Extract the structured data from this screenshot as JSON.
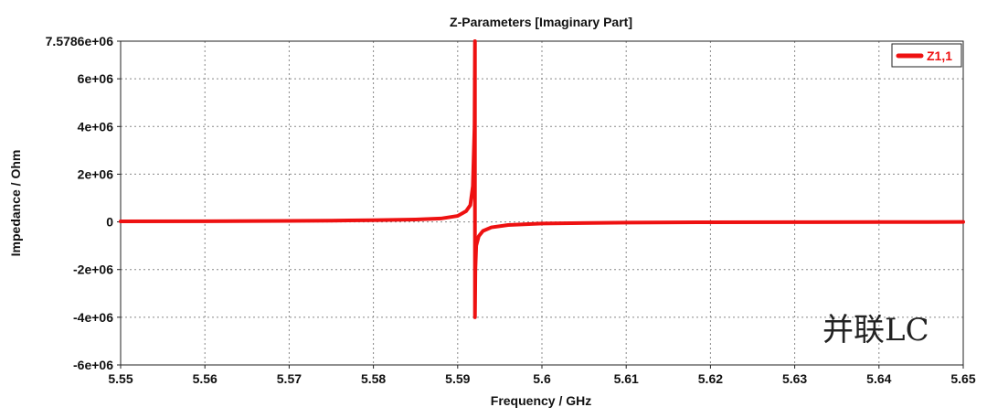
{
  "chart_data": {
    "type": "line",
    "title": "Z-Parameters [Imaginary Part]",
    "xlabel": "Frequency / GHz",
    "ylabel": "Impedance / Ohm",
    "xlim": [
      5.55,
      5.65
    ],
    "ylim": [
      -6000000,
      7578600
    ],
    "x_ticks": [
      5.55,
      5.56,
      5.57,
      5.58,
      5.59,
      5.6,
      5.61,
      5.62,
      5.63,
      5.64,
      5.65
    ],
    "x_tick_labels": [
      "5.55",
      "5.56",
      "5.57",
      "5.58",
      "5.59",
      "5.6",
      "5.61",
      "5.62",
      "5.63",
      "5.64",
      "5.65"
    ],
    "y_ticks": [
      -6000000,
      -4000000,
      -2000000,
      0,
      2000000,
      4000000,
      6000000,
      7578600
    ],
    "y_tick_labels": [
      "-6e+06",
      "-4e+06",
      "-2e+06",
      "0",
      "2e+06",
      "4e+06",
      "6e+06",
      "7.5786e+06"
    ],
    "grid": true,
    "legend_position": "top-right",
    "annotation": "并联LC",
    "series": [
      {
        "name": "Z1,1",
        "color": "#ee1111",
        "x": [
          5.55,
          5.56,
          5.57,
          5.575,
          5.58,
          5.585,
          5.588,
          5.59,
          5.591,
          5.5915,
          5.5918,
          5.592,
          5.59205,
          5.59205,
          5.5921,
          5.5922,
          5.5925,
          5.593,
          5.594,
          5.596,
          5.6,
          5.61,
          5.62,
          5.63,
          5.64,
          5.65
        ],
        "y": [
          20000,
          25000,
          40000,
          50000,
          70000,
          100000,
          140000,
          250000,
          450000,
          700000,
          1500000,
          4000000,
          7578600,
          -4000000,
          -2000000,
          -1000000,
          -600000,
          -380000,
          -230000,
          -130000,
          -70000,
          -30000,
          -15000,
          -10000,
          -6000,
          -4000
        ]
      }
    ]
  }
}
